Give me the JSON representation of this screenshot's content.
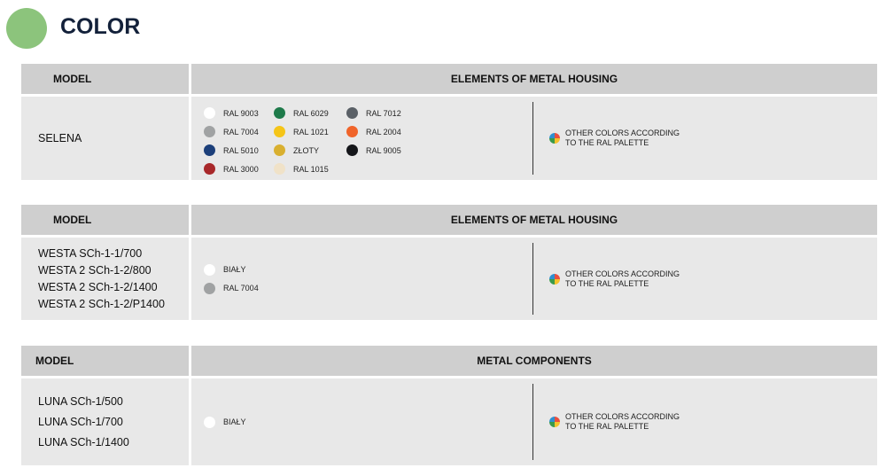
{
  "title": "COLOR",
  "other": [
    "OTHER COLORS ACCORDING",
    "TO THE RAL PALETTE"
  ],
  "tables": [
    {
      "model_header": "MODEL",
      "elements_header": "ELEMENTS OF METAL HOUSING",
      "models": [
        "SELENA"
      ],
      "colors": [
        {
          "name": "RAL 9003",
          "hex": "#ffffff"
        },
        {
          "name": "RAL 6029",
          "hex": "#1e7a4a"
        },
        {
          "name": "RAL 7012",
          "hex": "#5a6066"
        },
        {
          "name": "RAL 7004",
          "hex": "#a0a2a3"
        },
        {
          "name": "RAL 1021",
          "hex": "#f5c518"
        },
        {
          "name": "RAL 2004",
          "hex": "#f0642a"
        },
        {
          "name": "RAL 5010",
          "hex": "#1c3f7a"
        },
        {
          "name": "ZŁOTY",
          "hex": "#d9b030"
        },
        {
          "name": "RAL 9005",
          "hex": "#15161a"
        },
        {
          "name": "RAL 3000",
          "hex": "#a8282a"
        },
        {
          "name": "RAL 1015",
          "hex": "#f0e2c8"
        }
      ]
    },
    {
      "model_header": "MODEL",
      "elements_header": "ELEMENTS OF METAL HOUSING",
      "models": [
        "WESTA SCh-1-1/700",
        "WESTA 2 SCh-1-2/800",
        "WESTA 2 SCh-1-2/1400",
        "WESTA 2 SCh-1-2/P1400"
      ],
      "colors": [
        {
          "name": "BIAŁY",
          "hex": "#ffffff"
        },
        {
          "name": "RAL 7004",
          "hex": "#a0a2a3"
        }
      ]
    },
    {
      "model_header": "MODEL",
      "elements_header": "METAL COMPONENTS",
      "models": [
        "LUNA SCh-1/500",
        "LUNA SCh-1/700",
        "LUNA SCh-1/1400"
      ],
      "colors": [
        {
          "name": "BIAŁY",
          "hex": "#ffffff"
        }
      ]
    }
  ]
}
